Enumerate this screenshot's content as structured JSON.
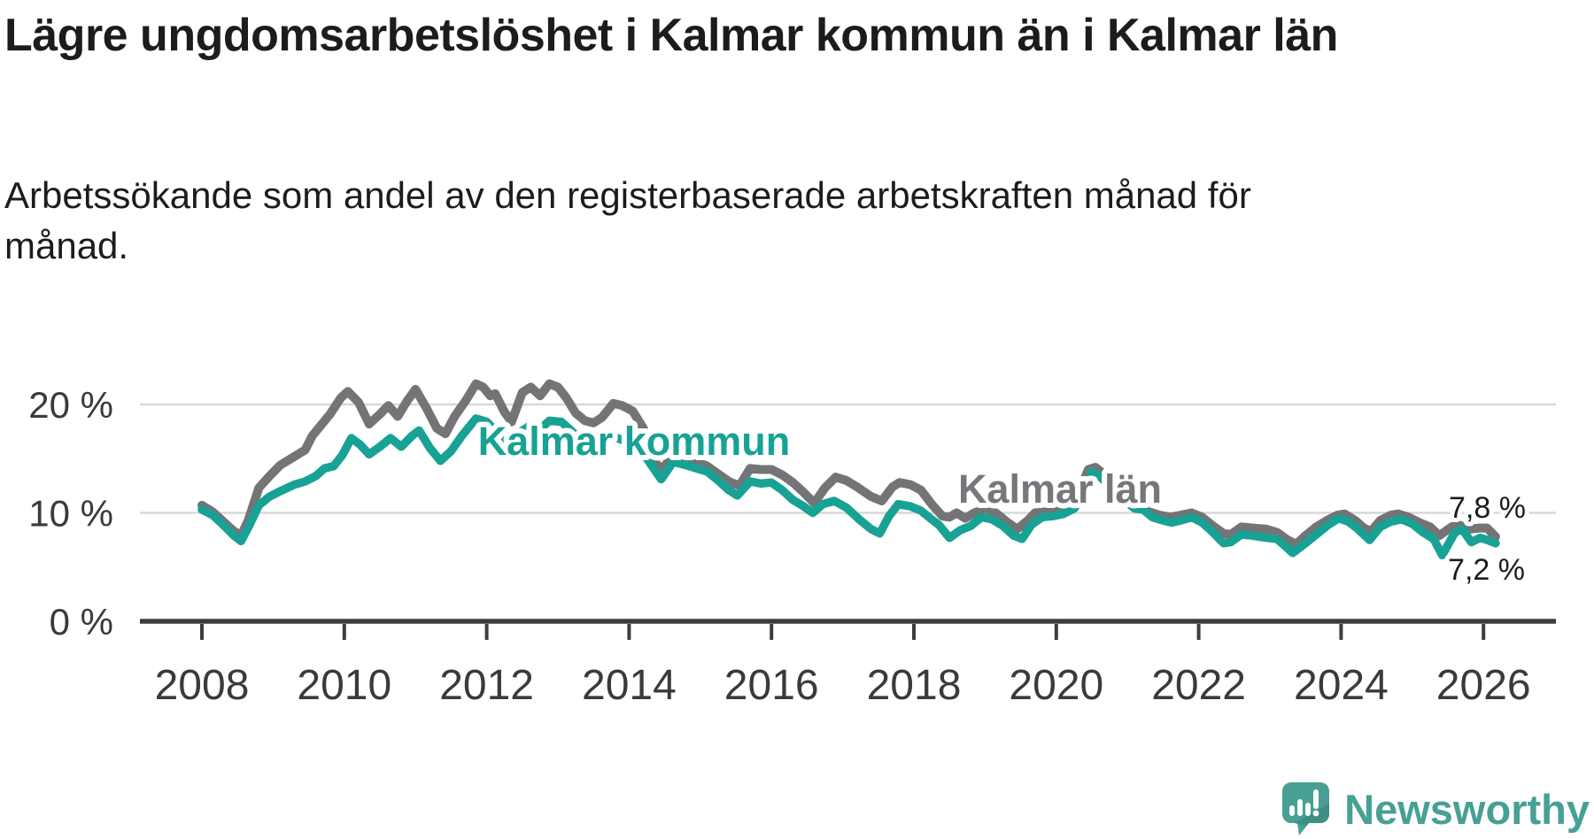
{
  "title": "Lägre ungdomsarbetslöshet i Kalmar kommun än i Kalmar län",
  "subtitle": "Arbetssökande som andel av den registerbaserade arbetskraften månad för månad.",
  "branding": {
    "logo_text": "Newsworthy",
    "logo_icon": "speech-bubble-bar-chart-icon"
  },
  "colors": {
    "kommun_line": "#17a295",
    "lan_line": "#747477",
    "lan_label": "#76777a",
    "grid": "#d8d8d8",
    "axis": "#3d3d3d",
    "tick_text": "#3a3a3a",
    "title_text": "#1c1c1a",
    "annotation_text": "#1c1c1a",
    "brand_teal": "#47a093",
    "background": "#ffffff"
  },
  "chart_data": {
    "type": "line",
    "title": "Lägre ungdomsarbetslöshet i Kalmar kommun än i Kalmar län",
    "subtitle": "Arbetssökande som andel av den registerbaserade arbetskraften månad för månad.",
    "xlabel": "",
    "ylabel": "",
    "unit": "%",
    "grid": "horizontal gridlines at 10 % and 20 %",
    "legend_position": "inline labels on lines",
    "x_axis": {
      "tick_years": [
        2008,
        2010,
        2012,
        2014,
        2016,
        2018,
        2020,
        2022,
        2024,
        2026
      ],
      "range_years": [
        2008.0,
        2026.9
      ]
    },
    "y_axis": {
      "tick_labels": [
        "0 %",
        "10 %",
        "20 %"
      ],
      "tick_values": [
        0,
        10,
        20
      ],
      "range": [
        0,
        24
      ]
    },
    "series": [
      {
        "name": "Kalmar län",
        "inline_label": "Kalmar län",
        "end_label": "7,8 %",
        "end_value": 7.8,
        "color": "#747477",
        "points": [
          [
            2008.0,
            10.7
          ],
          [
            2008.15,
            10.1
          ],
          [
            2008.3,
            9.2
          ],
          [
            2008.45,
            8.3
          ],
          [
            2008.55,
            7.9
          ],
          [
            2008.65,
            9.3
          ],
          [
            2008.8,
            12.3
          ],
          [
            2008.95,
            13.4
          ],
          [
            2009.1,
            14.4
          ],
          [
            2009.3,
            15.2
          ],
          [
            2009.45,
            15.8
          ],
          [
            2009.55,
            17.1
          ],
          [
            2009.65,
            17.9
          ],
          [
            2009.8,
            19.1
          ],
          [
            2009.95,
            20.6
          ],
          [
            2010.05,
            21.2
          ],
          [
            2010.2,
            20.2
          ],
          [
            2010.35,
            18.2
          ],
          [
            2010.5,
            19.1
          ],
          [
            2010.62,
            19.9
          ],
          [
            2010.75,
            18.9
          ],
          [
            2010.88,
            20.3
          ],
          [
            2011.0,
            21.4
          ],
          [
            2011.15,
            19.7
          ],
          [
            2011.3,
            17.8
          ],
          [
            2011.42,
            17.3
          ],
          [
            2011.55,
            18.9
          ],
          [
            2011.7,
            20.3
          ],
          [
            2011.85,
            21.9
          ],
          [
            2011.95,
            21.6
          ],
          [
            2012.05,
            20.8
          ],
          [
            2012.12,
            21.0
          ],
          [
            2012.25,
            19.3
          ],
          [
            2012.35,
            18.4
          ],
          [
            2012.5,
            21.1
          ],
          [
            2012.62,
            21.6
          ],
          [
            2012.75,
            20.8
          ],
          [
            2012.88,
            21.9
          ],
          [
            2013.0,
            21.6
          ],
          [
            2013.12,
            20.6
          ],
          [
            2013.25,
            19.2
          ],
          [
            2013.38,
            18.5
          ],
          [
            2013.5,
            18.3
          ],
          [
            2013.62,
            18.8
          ],
          [
            2013.78,
            20.1
          ],
          [
            2013.9,
            19.9
          ],
          [
            2014.05,
            19.4
          ],
          [
            2014.2,
            17.8
          ],
          [
            2014.32,
            15.2
          ],
          [
            2014.45,
            13.9
          ],
          [
            2014.6,
            15.2
          ],
          [
            2014.78,
            15.0
          ],
          [
            2014.95,
            14.7
          ],
          [
            2015.1,
            14.3
          ],
          [
            2015.25,
            13.6
          ],
          [
            2015.4,
            12.9
          ],
          [
            2015.55,
            12.5
          ],
          [
            2015.7,
            14.1
          ],
          [
            2015.85,
            14.0
          ],
          [
            2016.0,
            14.0
          ],
          [
            2016.15,
            13.5
          ],
          [
            2016.3,
            12.8
          ],
          [
            2016.45,
            11.9
          ],
          [
            2016.6,
            10.9
          ],
          [
            2016.75,
            12.3
          ],
          [
            2016.9,
            13.3
          ],
          [
            2017.05,
            13.0
          ],
          [
            2017.2,
            12.4
          ],
          [
            2017.4,
            11.5
          ],
          [
            2017.55,
            11.1
          ],
          [
            2017.7,
            12.4
          ],
          [
            2017.8,
            12.8
          ],
          [
            2017.95,
            12.6
          ],
          [
            2018.1,
            12.1
          ],
          [
            2018.25,
            10.8
          ],
          [
            2018.4,
            9.7
          ],
          [
            2018.5,
            9.6
          ],
          [
            2018.6,
            10.0
          ],
          [
            2018.72,
            9.5
          ],
          [
            2018.85,
            10.0
          ],
          [
            2019.0,
            10.4
          ],
          [
            2019.15,
            10.0
          ],
          [
            2019.3,
            9.2
          ],
          [
            2019.45,
            8.5
          ],
          [
            2019.6,
            9.3
          ],
          [
            2019.7,
            10.0
          ],
          [
            2019.85,
            10.1
          ],
          [
            2020.0,
            10.2
          ],
          [
            2020.15,
            10.5
          ],
          [
            2020.3,
            11.6
          ],
          [
            2020.45,
            14.0
          ],
          [
            2020.55,
            14.2
          ],
          [
            2020.7,
            13.4
          ],
          [
            2020.85,
            12.4
          ],
          [
            2021.0,
            11.4
          ],
          [
            2021.15,
            10.6
          ],
          [
            2021.3,
            10.1
          ],
          [
            2021.45,
            9.8
          ],
          [
            2021.6,
            9.6
          ],
          [
            2021.75,
            9.8
          ],
          [
            2021.9,
            10.0
          ],
          [
            2022.05,
            9.6
          ],
          [
            2022.2,
            8.8
          ],
          [
            2022.35,
            8.1
          ],
          [
            2022.45,
            8.0
          ],
          [
            2022.6,
            8.7
          ],
          [
            2022.75,
            8.6
          ],
          [
            2022.95,
            8.5
          ],
          [
            2023.1,
            8.2
          ],
          [
            2023.25,
            7.5
          ],
          [
            2023.37,
            7.1
          ],
          [
            2023.5,
            7.9
          ],
          [
            2023.65,
            8.7
          ],
          [
            2023.8,
            9.3
          ],
          [
            2023.95,
            9.8
          ],
          [
            2024.05,
            9.9
          ],
          [
            2024.2,
            9.3
          ],
          [
            2024.32,
            8.6
          ],
          [
            2024.42,
            8.3
          ],
          [
            2024.55,
            9.3
          ],
          [
            2024.7,
            9.8
          ],
          [
            2024.8,
            9.9
          ],
          [
            2024.95,
            9.6
          ],
          [
            2025.1,
            9.1
          ],
          [
            2025.25,
            8.7
          ],
          [
            2025.38,
            7.9
          ],
          [
            2025.55,
            8.7
          ],
          [
            2025.65,
            8.9
          ],
          [
            2025.8,
            8.5
          ],
          [
            2025.95,
            8.6
          ],
          [
            2026.05,
            8.6
          ],
          [
            2026.17,
            7.8
          ]
        ]
      },
      {
        "name": "Kalmar kommun",
        "inline_label": "Kalmar kommun",
        "end_label": "7,2 %",
        "end_value": 7.2,
        "color": "#17a295",
        "points": [
          [
            2008.0,
            10.3
          ],
          [
            2008.15,
            9.8
          ],
          [
            2008.3,
            8.9
          ],
          [
            2008.45,
            7.9
          ],
          [
            2008.55,
            7.4
          ],
          [
            2008.67,
            8.9
          ],
          [
            2008.8,
            10.7
          ],
          [
            2008.95,
            11.5
          ],
          [
            2009.1,
            12.0
          ],
          [
            2009.3,
            12.6
          ],
          [
            2009.45,
            12.9
          ],
          [
            2009.6,
            13.4
          ],
          [
            2009.72,
            14.1
          ],
          [
            2009.85,
            14.3
          ],
          [
            2009.97,
            15.3
          ],
          [
            2010.1,
            16.9
          ],
          [
            2010.22,
            16.3
          ],
          [
            2010.35,
            15.4
          ],
          [
            2010.5,
            16.1
          ],
          [
            2010.65,
            16.9
          ],
          [
            2010.8,
            16.1
          ],
          [
            2010.95,
            17.1
          ],
          [
            2011.05,
            17.6
          ],
          [
            2011.2,
            16.0
          ],
          [
            2011.35,
            14.8
          ],
          [
            2011.5,
            15.7
          ],
          [
            2011.65,
            17.1
          ],
          [
            2011.85,
            18.7
          ],
          [
            2012.0,
            18.4
          ],
          [
            2012.15,
            17.4
          ],
          [
            2012.3,
            16.6
          ],
          [
            2012.45,
            17.4
          ],
          [
            2012.6,
            18.0
          ],
          [
            2012.73,
            17.6
          ],
          [
            2012.88,
            18.5
          ],
          [
            2013.05,
            18.4
          ],
          [
            2013.2,
            17.5
          ],
          [
            2013.35,
            16.6
          ],
          [
            2013.5,
            16.2
          ],
          [
            2013.65,
            16.6
          ],
          [
            2013.8,
            17.0
          ],
          [
            2013.95,
            16.6
          ],
          [
            2014.1,
            16.2
          ],
          [
            2014.25,
            15.0
          ],
          [
            2014.45,
            13.1
          ],
          [
            2014.62,
            14.7
          ],
          [
            2014.8,
            14.4
          ],
          [
            2014.95,
            14.1
          ],
          [
            2015.1,
            13.8
          ],
          [
            2015.25,
            13.0
          ],
          [
            2015.4,
            12.1
          ],
          [
            2015.52,
            11.6
          ],
          [
            2015.7,
            12.9
          ],
          [
            2015.85,
            12.7
          ],
          [
            2016.0,
            12.8
          ],
          [
            2016.15,
            12.1
          ],
          [
            2016.3,
            11.2
          ],
          [
            2016.45,
            10.6
          ],
          [
            2016.58,
            10.0
          ],
          [
            2016.72,
            10.8
          ],
          [
            2016.88,
            11.1
          ],
          [
            2017.05,
            10.5
          ],
          [
            2017.25,
            9.3
          ],
          [
            2017.4,
            8.5
          ],
          [
            2017.52,
            8.1
          ],
          [
            2017.65,
            9.7
          ],
          [
            2017.78,
            10.8
          ],
          [
            2017.95,
            10.6
          ],
          [
            2018.1,
            10.2
          ],
          [
            2018.25,
            9.4
          ],
          [
            2018.35,
            8.9
          ],
          [
            2018.5,
            7.7
          ],
          [
            2018.65,
            8.4
          ],
          [
            2018.8,
            8.8
          ],
          [
            2018.95,
            9.6
          ],
          [
            2019.1,
            9.4
          ],
          [
            2019.25,
            8.8
          ],
          [
            2019.4,
            7.9
          ],
          [
            2019.52,
            7.6
          ],
          [
            2019.65,
            8.9
          ],
          [
            2019.8,
            9.6
          ],
          [
            2019.95,
            9.7
          ],
          [
            2020.1,
            9.9
          ],
          [
            2020.25,
            10.4
          ],
          [
            2020.4,
            11.8
          ],
          [
            2020.5,
            13.8
          ],
          [
            2020.62,
            13.3
          ],
          [
            2020.78,
            12.3
          ],
          [
            2020.95,
            11.2
          ],
          [
            2021.1,
            10.4
          ],
          [
            2021.22,
            10.3
          ],
          [
            2021.35,
            9.6
          ],
          [
            2021.5,
            9.3
          ],
          [
            2021.62,
            9.1
          ],
          [
            2021.75,
            9.3
          ],
          [
            2021.9,
            9.6
          ],
          [
            2022.05,
            9.1
          ],
          [
            2022.2,
            8.2
          ],
          [
            2022.35,
            7.2
          ],
          [
            2022.45,
            7.3
          ],
          [
            2022.6,
            8.0
          ],
          [
            2022.75,
            7.9
          ],
          [
            2022.95,
            7.7
          ],
          [
            2023.1,
            7.6
          ],
          [
            2023.22,
            6.9
          ],
          [
            2023.32,
            6.3
          ],
          [
            2023.5,
            7.2
          ],
          [
            2023.65,
            8.0
          ],
          [
            2023.82,
            8.9
          ],
          [
            2023.97,
            9.5
          ],
          [
            2024.1,
            9.2
          ],
          [
            2024.22,
            8.6
          ],
          [
            2024.4,
            7.5
          ],
          [
            2024.55,
            8.7
          ],
          [
            2024.7,
            9.2
          ],
          [
            2024.85,
            9.4
          ],
          [
            2025.0,
            9.0
          ],
          [
            2025.15,
            8.2
          ],
          [
            2025.3,
            7.6
          ],
          [
            2025.42,
            6.1
          ],
          [
            2025.6,
            8.2
          ],
          [
            2025.7,
            8.5
          ],
          [
            2025.83,
            7.3
          ],
          [
            2025.95,
            7.7
          ],
          [
            2026.05,
            7.5
          ],
          [
            2026.17,
            7.2
          ]
        ]
      }
    ]
  }
}
